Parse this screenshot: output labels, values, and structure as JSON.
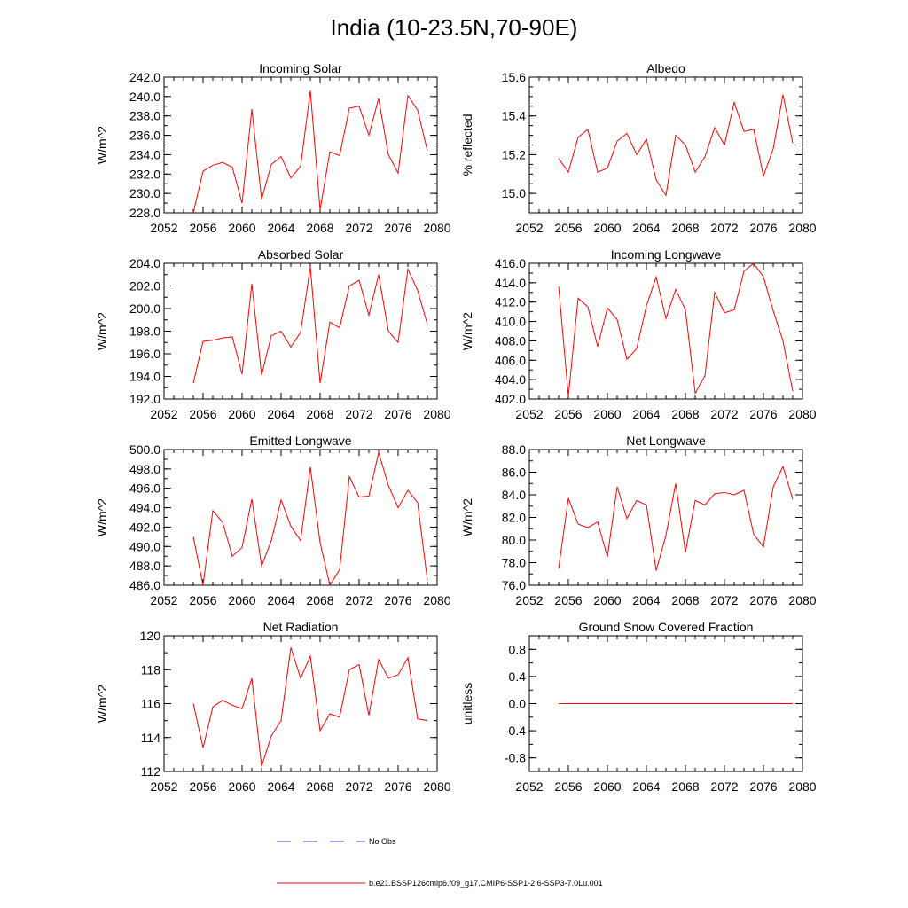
{
  "title": "India (10-23.5N,70-90E)",
  "series_color": "#ff0000",
  "obs_color": "#0000ff",
  "legend": {
    "obs_label": "No Obs",
    "model_label": "b.e21.BSSP126cmip6.f09_g17.CMIP6-SSP1-2.6-SSP3-7.0Lu.001"
  },
  "years": [
    2055,
    2056,
    2057,
    2058,
    2059,
    2060,
    2061,
    2062,
    2063,
    2064,
    2065,
    2066,
    2067,
    2068,
    2069,
    2070,
    2071,
    2072,
    2073,
    2074,
    2075,
    2076,
    2077,
    2078,
    2079
  ],
  "chart_data": [
    {
      "type": "line",
      "title": "Incoming Solar",
      "ylabel": "W/m^2",
      "xlim": [
        2052,
        2080
      ],
      "xticks": [
        "2052",
        "2056",
        "2060",
        "2064",
        "2068",
        "2072",
        "2076",
        "2080"
      ],
      "ylim": [
        228,
        242
      ],
      "yticks": [
        "228.0",
        "230.0",
        "232.0",
        "234.0",
        "236.0",
        "238.0",
        "240.0",
        "242.0"
      ],
      "yminor": 1,
      "values": [
        228.0,
        232.3,
        232.9,
        233.2,
        232.7,
        229.0,
        238.7,
        229.4,
        233.0,
        233.8,
        231.6,
        232.8,
        240.6,
        228.3,
        234.3,
        233.9,
        238.8,
        239.0,
        236.0,
        239.8,
        234.0,
        232.1,
        240.1,
        238.6,
        234.4
      ]
    },
    {
      "type": "line",
      "title": "Albedo",
      "ylabel": "% reflected",
      "xlim": [
        2052,
        2080
      ],
      "xticks": [
        "2052",
        "2056",
        "2060",
        "2064",
        "2068",
        "2072",
        "2076",
        "2080"
      ],
      "ylim": [
        14.9,
        15.6
      ],
      "yticks": [
        "15.0",
        "15.2",
        "15.4",
        "15.6"
      ],
      "yminor": 0.05,
      "values": [
        15.18,
        15.11,
        15.29,
        15.33,
        15.11,
        15.13,
        15.27,
        15.31,
        15.2,
        15.28,
        15.07,
        14.99,
        15.3,
        15.25,
        15.11,
        15.19,
        15.34,
        15.25,
        15.47,
        15.32,
        15.33,
        15.09,
        15.23,
        15.51,
        15.26
      ]
    },
    {
      "type": "line",
      "title": "Absorbed Solar",
      "ylabel": "W/m^2",
      "xlim": [
        2052,
        2080
      ],
      "xticks": [
        "2052",
        "2056",
        "2060",
        "2064",
        "2068",
        "2072",
        "2076",
        "2080"
      ],
      "ylim": [
        192,
        204
      ],
      "yticks": [
        "192.0",
        "194.0",
        "196.0",
        "198.0",
        "200.0",
        "202.0",
        "204.0"
      ],
      "yminor": 1,
      "values": [
        193.4,
        197.1,
        197.2,
        197.4,
        197.5,
        194.2,
        202.2,
        194.1,
        197.6,
        198.0,
        196.6,
        197.9,
        203.7,
        193.4,
        198.8,
        198.3,
        202.0,
        202.5,
        199.4,
        203.0,
        198.0,
        197.0,
        203.5,
        201.6,
        198.6
      ]
    },
    {
      "type": "line",
      "title": "Incoming Longwave",
      "ylabel": "W/m^2",
      "xlim": [
        2052,
        2080
      ],
      "xticks": [
        "2052",
        "2056",
        "2060",
        "2064",
        "2068",
        "2072",
        "2076",
        "2080"
      ],
      "ylim": [
        402,
        416
      ],
      "yticks": [
        "402.0",
        "404.0",
        "406.0",
        "408.0",
        "410.0",
        "412.0",
        "414.0",
        "416.0"
      ],
      "yminor": 1,
      "values": [
        413.6,
        402.3,
        412.4,
        411.5,
        407.4,
        411.4,
        410.2,
        406.1,
        407.2,
        411.6,
        414.6,
        410.3,
        413.3,
        411.2,
        402.6,
        404.4,
        413.0,
        410.9,
        411.2,
        415.2,
        416.0,
        414.6,
        411.1,
        408.0,
        402.8
      ]
    },
    {
      "type": "line",
      "title": "Emitted Longwave",
      "ylabel": "W/m^2",
      "xlim": [
        2052,
        2080
      ],
      "xticks": [
        "2052",
        "2056",
        "2060",
        "2064",
        "2068",
        "2072",
        "2076",
        "2080"
      ],
      "ylim": [
        486,
        500
      ],
      "yticks": [
        "486.0",
        "488.0",
        "490.0",
        "492.0",
        "494.0",
        "496.0",
        "498.0",
        "500.0"
      ],
      "yminor": 1,
      "values": [
        491.0,
        486.0,
        493.7,
        492.5,
        489.0,
        489.9,
        494.9,
        488.0,
        490.6,
        494.8,
        492.1,
        490.6,
        498.2,
        490.4,
        486.0,
        487.6,
        497.2,
        495.1,
        495.2,
        499.7,
        496.3,
        494.0,
        495.8,
        494.5,
        486.5
      ]
    },
    {
      "type": "line",
      "title": "Net Longwave",
      "ylabel": "W/m^2",
      "xlim": [
        2052,
        2080
      ],
      "xticks": [
        "2052",
        "2056",
        "2060",
        "2064",
        "2068",
        "2072",
        "2076",
        "2080"
      ],
      "ylim": [
        76,
        88
      ],
      "yticks": [
        "76.0",
        "78.0",
        "80.0",
        "82.0",
        "84.0",
        "86.0",
        "88.0"
      ],
      "yminor": 1,
      "values": [
        77.5,
        83.7,
        81.4,
        81.1,
        81.6,
        78.5,
        84.7,
        81.9,
        83.5,
        83.1,
        77.3,
        80.4,
        85.0,
        78.9,
        83.5,
        83.1,
        84.1,
        84.2,
        84.0,
        84.4,
        80.5,
        79.4,
        84.7,
        86.5,
        83.6
      ]
    },
    {
      "type": "line",
      "title": "Net Radiation",
      "ylabel": "W/m^2",
      "xlim": [
        2052,
        2080
      ],
      "xticks": [
        "2052",
        "2056",
        "2060",
        "2064",
        "2068",
        "2072",
        "2076",
        "2080"
      ],
      "ylim": [
        112,
        120
      ],
      "yticks": [
        "112",
        "114",
        "116",
        "118",
        "120"
      ],
      "yminor": 1,
      "values": [
        116.0,
        113.4,
        115.8,
        116.2,
        115.9,
        115.7,
        117.5,
        112.3,
        114.1,
        115.0,
        119.3,
        117.5,
        118.8,
        114.4,
        115.4,
        115.2,
        118.0,
        118.3,
        115.3,
        118.6,
        117.5,
        117.7,
        118.7,
        115.1,
        115.0
      ]
    },
    {
      "type": "line",
      "title": "Ground Snow Covered Fraction",
      "ylabel": "unitless",
      "xlim": [
        2052,
        2080
      ],
      "xticks": [
        "2052",
        "2056",
        "2060",
        "2064",
        "2068",
        "2072",
        "2076",
        "2080"
      ],
      "ylim": [
        -1.0,
        1.0
      ],
      "yticks": [
        "-0.8",
        "-0.4",
        "0.0",
        "0.4",
        "0.8"
      ],
      "yminor": 0.2,
      "values": [
        0,
        0,
        0,
        0,
        0,
        0,
        0,
        0,
        0,
        0,
        0,
        0,
        0,
        0,
        0,
        0,
        0,
        0,
        0,
        0,
        0,
        0,
        0,
        0,
        0
      ]
    }
  ]
}
